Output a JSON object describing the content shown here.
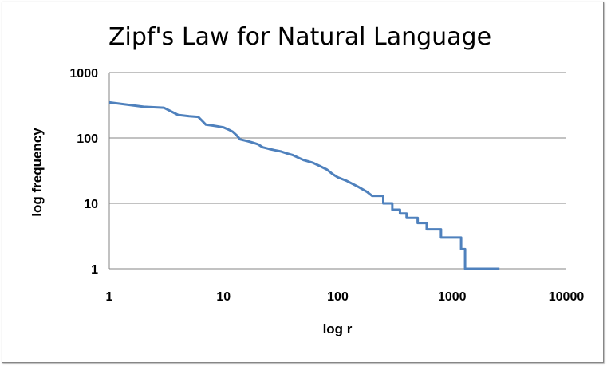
{
  "chart_data": {
    "type": "line",
    "title": "Zipf's Law for Natural Language",
    "xlabel": "log r",
    "ylabel": "log frequency",
    "x_scale": "log",
    "y_scale": "log",
    "xlim": [
      1,
      10000
    ],
    "ylim": [
      1,
      1000
    ],
    "x_ticks": [
      "1",
      "10",
      "100",
      "1000",
      "10000"
    ],
    "y_ticks": [
      "1",
      "10",
      "100",
      "1000"
    ],
    "grid": "horizontal",
    "legend": "none",
    "line_color": "#4F81BD",
    "series": [
      {
        "points": [
          [
            1,
            350
          ],
          [
            2,
            300
          ],
          [
            3,
            290
          ],
          [
            4,
            225
          ],
          [
            5,
            215
          ],
          [
            6,
            210
          ],
          [
            7,
            160
          ],
          [
            8,
            155
          ],
          [
            9,
            150
          ],
          [
            10,
            145
          ],
          [
            11,
            135
          ],
          [
            12,
            125
          ],
          [
            13,
            110
          ],
          [
            14,
            95
          ],
          [
            16,
            90
          ],
          [
            18,
            85
          ],
          [
            20,
            80
          ],
          [
            22,
            72
          ],
          [
            25,
            68
          ],
          [
            28,
            65
          ],
          [
            32,
            62
          ],
          [
            36,
            58
          ],
          [
            40,
            55
          ],
          [
            45,
            50
          ],
          [
            50,
            46
          ],
          [
            60,
            42
          ],
          [
            70,
            37
          ],
          [
            80,
            33
          ],
          [
            90,
            28
          ],
          [
            100,
            25
          ],
          [
            120,
            22
          ],
          [
            150,
            18
          ],
          [
            180,
            15
          ],
          [
            200,
            13
          ],
          [
            250,
            10
          ],
          [
            300,
            8
          ],
          [
            350,
            7
          ],
          [
            400,
            6
          ],
          [
            500,
            5
          ],
          [
            600,
            4
          ],
          [
            800,
            3
          ],
          [
            1200,
            2
          ],
          [
            1300,
            1
          ],
          [
            2600,
            1
          ]
        ]
      }
    ]
  }
}
